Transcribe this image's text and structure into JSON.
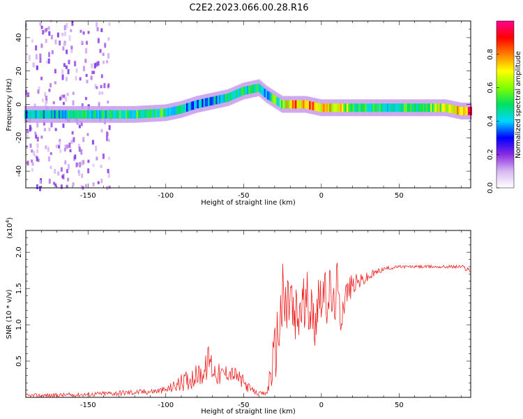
{
  "title": "C2E2.2023.066.00.28.R16",
  "colors": {
    "snr_line": "#ee2222",
    "frame": "#000000",
    "colormap": [
      "#ffffff",
      "#d8b8f0",
      "#8a2be2",
      "#0000ff",
      "#00d8ff",
      "#00e060",
      "#80ff00",
      "#ffff00",
      "#ff8000",
      "#ff0000",
      "#ff0090"
    ]
  },
  "chart_data": [
    {
      "type": "heatmap",
      "xlabel": "Height of straight line (km)",
      "ylabel": "Frequency (Hz)",
      "xlim": [
        -190,
        96
      ],
      "ylim": [
        -50,
        50
      ],
      "xticks": [
        -150,
        -100,
        -50,
        0,
        50
      ],
      "yticks": [
        -40,
        -20,
        0,
        20,
        40
      ],
      "colorbar": {
        "label": "Normalized spectral amplitude",
        "range": [
          0,
          1
        ],
        "ticks": [
          "0.0",
          "0.2",
          "0.4",
          "0.6",
          "0.8"
        ]
      },
      "ridge": {
        "x": [
          -190,
          -150,
          -120,
          -100,
          -90,
          -80,
          -70,
          -60,
          -50,
          -40,
          -35,
          -30,
          -25,
          -20,
          -10,
          0,
          10,
          20,
          40,
          60,
          80,
          90,
          96
        ],
        "frequency": [
          -6,
          -6,
          -6,
          -5,
          -3,
          0,
          2,
          4,
          8,
          10,
          6,
          3,
          0,
          0,
          0,
          -2,
          -2,
          -2,
          -2,
          -2,
          -2,
          -4,
          -4
        ],
        "amplitude": [
          0.45,
          0.5,
          0.55,
          0.55,
          0.45,
          0.4,
          0.45,
          0.5,
          0.55,
          0.5,
          0.45,
          0.6,
          0.55,
          0.85,
          0.9,
          0.85,
          0.75,
          0.6,
          0.5,
          0.55,
          0.7,
          0.9,
          0.95
        ]
      }
    },
    {
      "type": "line",
      "xlabel": "Height of straight line (km)",
      "ylabel": "SNR (10 * v/v)",
      "multiplier_label": "(x10",
      "multiplier_exponent": "4",
      "xlim": [
        -190,
        96
      ],
      "ylim": [
        0,
        2.3
      ],
      "xticks": [
        -150,
        -100,
        -50,
        0,
        50
      ],
      "yticks": [
        "0.5",
        "1.0",
        "1.5",
        "2.0"
      ],
      "series": [
        {
          "x": [
            -190,
            -170,
            -150,
            -130,
            -110,
            -100,
            -95,
            -90,
            -85,
            -80,
            -75,
            -72,
            -70,
            -65,
            -60,
            -55,
            -50,
            -45,
            -40,
            -35,
            -33,
            -30,
            -28,
            -25,
            -22,
            -20,
            -18,
            -15,
            -12,
            -10,
            -8,
            -5,
            -2,
            0,
            3,
            5,
            8,
            10,
            12,
            15,
            20,
            25,
            30,
            35,
            40,
            50,
            60,
            70,
            80,
            90,
            96
          ],
          "y": [
            0.02,
            0.03,
            0.04,
            0.06,
            0.08,
            0.1,
            0.15,
            0.2,
            0.25,
            0.3,
            0.35,
            0.55,
            0.4,
            0.3,
            0.35,
            0.3,
            0.2,
            0.1,
            0.05,
            0.05,
            0.3,
            0.6,
            0.9,
            1.3,
            1.2,
            1.5,
            1.0,
            1.1,
            1.3,
            1.2,
            1.4,
            1.0,
            1.4,
            1.5,
            1.3,
            1.5,
            1.2,
            1.6,
            1.1,
            1.4,
            1.55,
            1.6,
            1.65,
            1.72,
            1.77,
            1.8,
            1.8,
            1.8,
            1.8,
            1.8,
            1.75
          ],
          "noise_amp": [
            0.03,
            0.03,
            0.03,
            0.04,
            0.04,
            0.05,
            0.08,
            0.12,
            0.15,
            0.15,
            0.18,
            0.25,
            0.2,
            0.15,
            0.12,
            0.12,
            0.1,
            0.05,
            0.03,
            0.03,
            0.25,
            0.4,
            0.5,
            0.6,
            0.6,
            0.65,
            0.55,
            0.5,
            0.5,
            0.45,
            0.45,
            0.4,
            0.45,
            0.4,
            0.4,
            0.4,
            0.35,
            0.35,
            0.3,
            0.25,
            0.15,
            0.1,
            0.08,
            0.05,
            0.03,
            0.02,
            0.02,
            0.02,
            0.02,
            0.03,
            0.04
          ]
        }
      ]
    }
  ]
}
